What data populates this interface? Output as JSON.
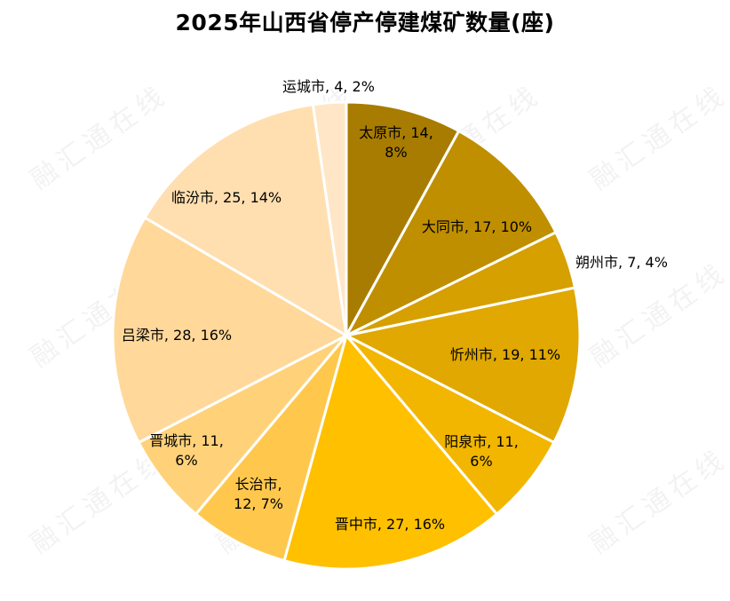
{
  "chart_data": {
    "type": "pie",
    "title": "2025年山西省停产停建煤矿数量(座)",
    "start_angle_deg": 90,
    "direction": "clockwise",
    "slices": [
      {
        "name": "太原市",
        "value": 14,
        "percent": "8%",
        "color": "#A87C00",
        "label": [
          "太原市, 14,",
          "8%"
        ]
      },
      {
        "name": "大同市",
        "value": 17,
        "percent": "10%",
        "color": "#BF8F00",
        "label": [
          "大同市, 17, 10%"
        ]
      },
      {
        "name": "朔州市",
        "value": 7,
        "percent": "4%",
        "color": "#D6A000",
        "label": [
          "朔州市, 7, 4%"
        ]
      },
      {
        "name": "忻州市",
        "value": 19,
        "percent": "11%",
        "color": "#E0A800",
        "label": [
          "忻州市, 19, 11%"
        ]
      },
      {
        "name": "阳泉市",
        "value": 11,
        "percent": "6%",
        "color": "#F2B600",
        "label": [
          "阳泉市, 11,",
          "6%"
        ]
      },
      {
        "name": "晋中市",
        "value": 27,
        "percent": "16%",
        "color": "#FFC000",
        "label": [
          "晋中市, 27, 16%"
        ]
      },
      {
        "name": "长治市",
        "value": 12,
        "percent": "7%",
        "color": "#FFC84D",
        "label": [
          "长治市,",
          "12, 7%"
        ]
      },
      {
        "name": "晋城市",
        "value": 11,
        "percent": "6%",
        "color": "#FFD27A",
        "label": [
          "晋城市, 11,",
          "6%"
        ]
      },
      {
        "name": "吕梁市",
        "value": 28,
        "percent": "16%",
        "color": "#FFD89A",
        "label": [
          "吕梁市, 28, 16%"
        ]
      },
      {
        "name": "临汾市",
        "value": 25,
        "percent": "14%",
        "color": "#FFDFB0",
        "label": [
          "临汾市, 25, 14%"
        ]
      },
      {
        "name": "运城市",
        "value": 4,
        "percent": "2%",
        "color": "#FFE6C6",
        "label": [
          "运城市, 4, 2%"
        ]
      }
    ]
  },
  "watermark_text": "融汇通在线"
}
